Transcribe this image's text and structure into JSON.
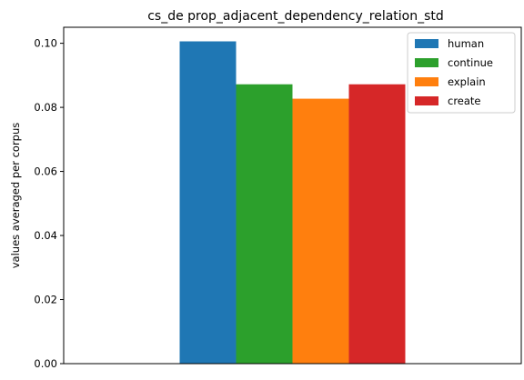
{
  "chart_data": {
    "type": "bar",
    "title": "cs_de prop_adjacent_dependency_relation_std",
    "xlabel": "",
    "ylabel": "values averaged per corpus",
    "ylim": [
      0,
      0.105
    ],
    "yticks": [
      0.0,
      0.02,
      0.04,
      0.06,
      0.08,
      0.1
    ],
    "ytick_labels": [
      "0.00",
      "0.02",
      "0.04",
      "0.06",
      "0.08",
      "0.10"
    ],
    "legend_position": "top-right",
    "series": [
      {
        "name": "human",
        "value": 0.1006,
        "color": "#1f77b4"
      },
      {
        "name": "continue",
        "value": 0.0872,
        "color": "#2ca02c"
      },
      {
        "name": "explain",
        "value": 0.0827,
        "color": "#ff7f0e"
      },
      {
        "name": "create",
        "value": 0.0872,
        "color": "#d62728"
      }
    ]
  }
}
